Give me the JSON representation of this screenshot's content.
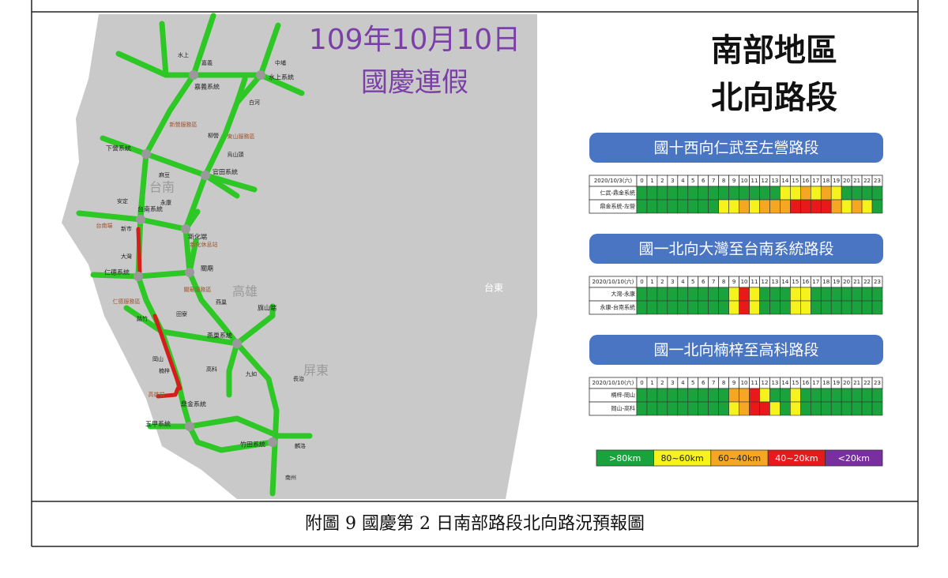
{
  "header": {
    "date": "109年10月10日",
    "title": "國慶連假"
  },
  "region": {
    "line1": "南部地區",
    "line2": "北向路段"
  },
  "map_labels": [
    "嘉義系統",
    "水上系統",
    "下營系統",
    "官田系統",
    "台南系統",
    "新化端",
    "關廟",
    "仁德系統",
    "燕巢系統",
    "鼎金系統",
    "五甲系統",
    "竹田系統",
    "旗山端",
    "台南",
    "高雄",
    "屏東",
    "台東",
    "新營服務區",
    "東山服務區",
    "新化休息站",
    "關廟服務區",
    "仁德服務區",
    "台南端",
    "高雄端",
    "水上",
    "嘉義",
    "中埔",
    "白河",
    "柳營",
    "烏山頭",
    "麻豆",
    "安定",
    "永康",
    "新市",
    "大灣",
    "路竹",
    "岡山",
    "楠梓",
    "高科",
    "田寮",
    "燕巢",
    "九如",
    "長治",
    "麟洛",
    "南州"
  ],
  "legend": [
    {
      "label": ">80km",
      "color": "#1aa33c"
    },
    {
      "label": "80~60km",
      "color": "#f5f21e"
    },
    {
      "label": "60~40km",
      "color": "#f5a623"
    },
    {
      "label": "40~20km",
      "color": "#e8191b"
    },
    {
      "label": "<20km",
      "color": "#7a2fa0"
    }
  ],
  "sections": [
    {
      "title": "國十西向仁武至左營路段",
      "date": "2020/10/3(六)",
      "hours": [
        0,
        1,
        2,
        3,
        4,
        5,
        6,
        7,
        8,
        9,
        10,
        11,
        12,
        13,
        14,
        15,
        16,
        17,
        18,
        19,
        20,
        21,
        22,
        23
      ],
      "rows": [
        {
          "name": "仁武-鼎金系統",
          "levels": [
            0,
            0,
            0,
            0,
            0,
            0,
            0,
            0,
            0,
            0,
            0,
            0,
            0,
            0,
            1,
            1,
            2,
            1,
            2,
            1,
            0,
            0,
            0,
            0
          ]
        },
        {
          "name": "鼎金系統-左營",
          "levels": [
            0,
            0,
            0,
            0,
            0,
            0,
            0,
            0,
            1,
            1,
            2,
            1,
            2,
            2,
            2,
            3,
            3,
            3,
            3,
            2,
            1,
            2,
            1,
            0
          ]
        }
      ]
    },
    {
      "title": "國一北向大灣至台南系統路段",
      "date": "2020/10/10(六)",
      "hours": [
        0,
        1,
        2,
        3,
        4,
        5,
        6,
        7,
        8,
        9,
        10,
        11,
        12,
        13,
        14,
        15,
        16,
        17,
        18,
        19,
        20,
        21,
        22,
        23
      ],
      "rows": [
        {
          "name": "大灣-永康",
          "levels": [
            0,
            0,
            0,
            0,
            0,
            0,
            0,
            0,
            0,
            1,
            3,
            1,
            0,
            0,
            0,
            1,
            1,
            0,
            0,
            0,
            0,
            0,
            0,
            0
          ]
        },
        {
          "name": "永康-台南系統",
          "levels": [
            0,
            0,
            0,
            0,
            0,
            0,
            0,
            0,
            0,
            1,
            3,
            1,
            0,
            0,
            0,
            1,
            1,
            0,
            0,
            0,
            0,
            0,
            0,
            0
          ]
        }
      ]
    },
    {
      "title": "國一北向楠梓至高科路段",
      "date": "2020/10/10(六)",
      "hours": [
        0,
        1,
        2,
        3,
        4,
        5,
        6,
        7,
        8,
        9,
        10,
        11,
        12,
        13,
        14,
        15,
        16,
        17,
        18,
        19,
        20,
        21,
        22,
        23
      ],
      "rows": [
        {
          "name": "楠梓-岡山",
          "levels": [
            0,
            0,
            0,
            0,
            0,
            0,
            0,
            0,
            0,
            2,
            2,
            3,
            1,
            0,
            0,
            1,
            0,
            0,
            0,
            0,
            0,
            0,
            0,
            0
          ]
        },
        {
          "name": "岡山-高科",
          "levels": [
            0,
            0,
            0,
            0,
            0,
            0,
            0,
            0,
            0,
            1,
            2,
            3,
            3,
            1,
            0,
            1,
            0,
            0,
            0,
            0,
            0,
            0,
            0,
            0
          ]
        }
      ]
    }
  ],
  "caption": "附圖 9 國慶第 2 日南部路段北向路況預報圖"
}
